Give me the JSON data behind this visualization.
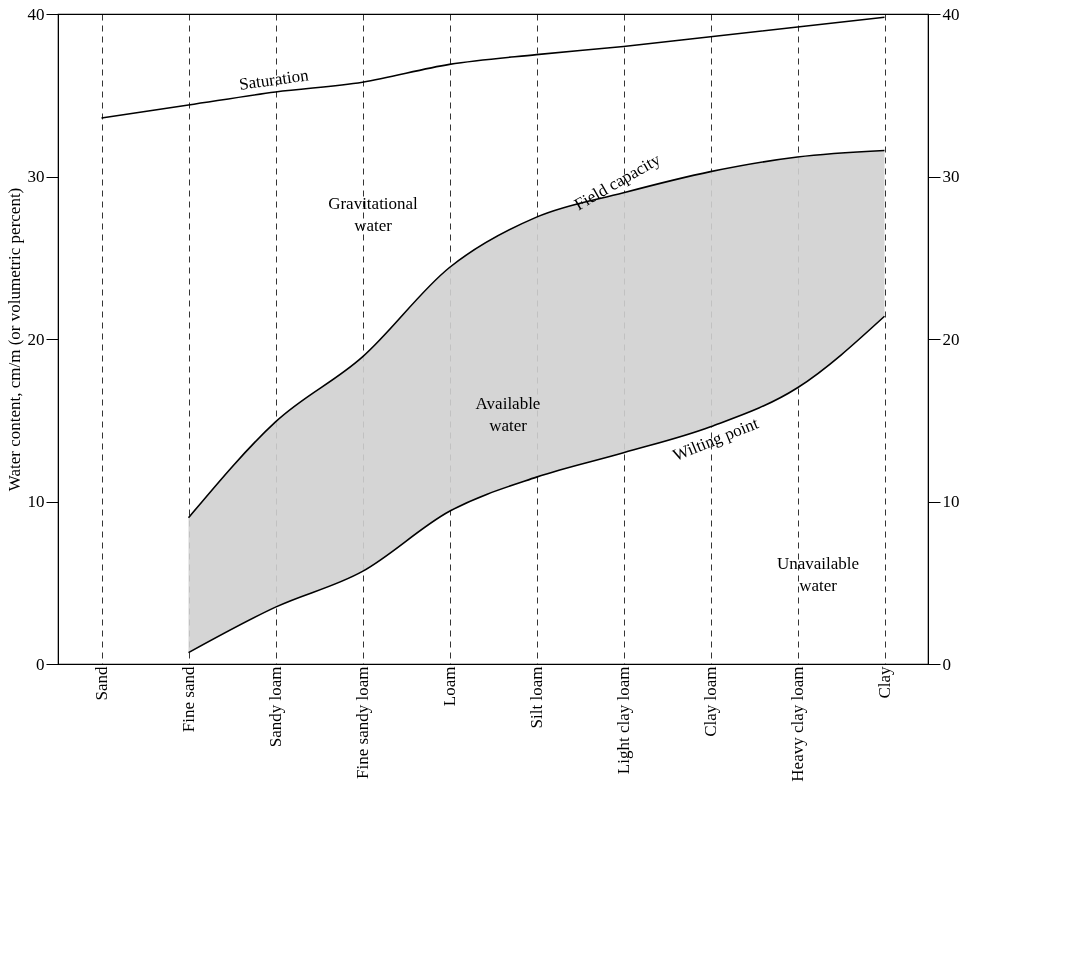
{
  "chart_data": {
    "type": "line",
    "ylabel": "Water content, cm/m (or volumetric percent)",
    "categories": [
      "Sand",
      "Fine sand",
      "Sandy loam",
      "Fine sandy loam",
      "Loam",
      "Silt loam",
      "Light clay loam",
      "Clay loam",
      "Heavy clay loam",
      "Clay"
    ],
    "series": [
      {
        "name": "Saturation",
        "color": "#000000",
        "values": [
          33.6,
          34.4,
          35.2,
          35.8,
          36.9,
          37.5,
          38.0,
          38.6,
          39.2,
          39.8
        ]
      },
      {
        "name": "Field capacity",
        "color": "#000000",
        "values": [
          null,
          9.0,
          14.9,
          18.9,
          24.4,
          27.5,
          29.0,
          30.3,
          31.2,
          31.6
        ],
        "lower": [
          null,
          0.7,
          3.5,
          5.7,
          9.4,
          11.5,
          13.0,
          14.6,
          17.0,
          21.4
        ],
        "upper": [
          null,
          9.0,
          14.9,
          18.9,
          24.4,
          27.5,
          29.0,
          30.3,
          31.2,
          31.6
        ]
      },
      {
        "name": "Wilting point",
        "color": "#000000",
        "values": [
          null,
          0.7,
          3.5,
          5.7,
          9.4,
          11.5,
          13.0,
          14.6,
          17.0,
          21.4
        ]
      }
    ],
    "annotations": [
      "Gravitational water",
      "Available water",
      "Unavailable water"
    ],
    "ylim": [
      0,
      40
    ],
    "yticks": [
      0,
      10,
      20,
      30,
      40
    ],
    "y2lim": [
      0,
      40
    ],
    "y2ticks": [
      0,
      10,
      20,
      30,
      40
    ],
    "grid": "x",
    "line_style": "solid",
    "legend": false
  }
}
